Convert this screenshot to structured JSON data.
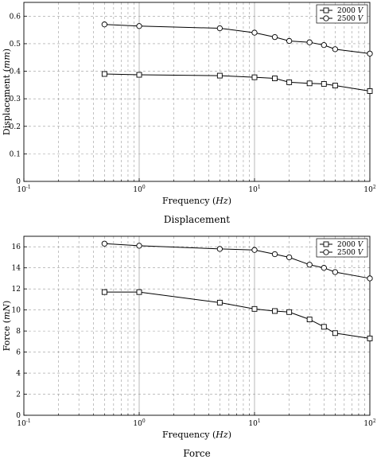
{
  "chart_data": [
    {
      "type": "line",
      "caption": "Displacement",
      "xlabel_text": "Frequency (",
      "xlabel_unit": "Hz",
      "xlabel_close": ")",
      "ylabel_text": "Displacement (",
      "ylabel_unit": "mm",
      "ylabel_close": ")",
      "xscale": "log",
      "xlim": [
        0.1,
        100
      ],
      "ylim": [
        0,
        0.65
      ],
      "yticks": [
        0,
        0.1,
        0.2,
        0.3,
        0.4,
        0.5,
        0.6
      ],
      "ytick_labels": [
        "0",
        "0.1",
        "0.2",
        "0.3",
        "0.4",
        "0.5",
        "0.6"
      ],
      "xtick_base": "10",
      "xtick_exps": [
        "-1",
        "0",
        "1",
        "2"
      ],
      "grid": true,
      "legend_position": "top-right",
      "x": [
        0.5,
        1,
        5,
        10,
        15,
        20,
        30,
        40,
        50,
        100
      ],
      "series": [
        {
          "name": "2000",
          "unit": "V",
          "marker": "square",
          "values": [
            0.39,
            0.387,
            0.384,
            0.378,
            0.374,
            0.36,
            0.356,
            0.354,
            0.348,
            0.328
          ]
        },
        {
          "name": "2500",
          "unit": "V",
          "marker": "circle",
          "values": [
            0.57,
            0.564,
            0.556,
            0.54,
            0.524,
            0.51,
            0.505,
            0.495,
            0.48,
            0.464
          ]
        }
      ]
    },
    {
      "type": "line",
      "caption": "Force",
      "xlabel_text": "Frequency (",
      "xlabel_unit": "Hz",
      "xlabel_close": ")",
      "ylabel_text": "Force (",
      "ylabel_unit": "mN",
      "ylabel_close": ")",
      "xscale": "log",
      "xlim": [
        0.1,
        100
      ],
      "ylim": [
        0,
        17
      ],
      "yticks": [
        0,
        2,
        4,
        6,
        8,
        10,
        12,
        14,
        16
      ],
      "ytick_labels": [
        "0",
        "2",
        "4",
        "6",
        "8",
        "10",
        "12",
        "14",
        "16"
      ],
      "xtick_base": "10",
      "xtick_exps": [
        "-1",
        "0",
        "1",
        "2"
      ],
      "grid": true,
      "legend_position": "top-right",
      "x": [
        0.5,
        1,
        5,
        10,
        15,
        20,
        30,
        40,
        50,
        100
      ],
      "series": [
        {
          "name": "2000",
          "unit": "V",
          "marker": "square",
          "values": [
            11.7,
            11.7,
            10.7,
            10.1,
            9.9,
            9.8,
            9.1,
            8.4,
            7.8,
            7.3
          ]
        },
        {
          "name": "2500",
          "unit": "V",
          "marker": "circle",
          "values": [
            16.3,
            16.1,
            15.8,
            15.7,
            15.3,
            15.0,
            14.3,
            14.0,
            13.6,
            13.0
          ]
        }
      ]
    }
  ]
}
